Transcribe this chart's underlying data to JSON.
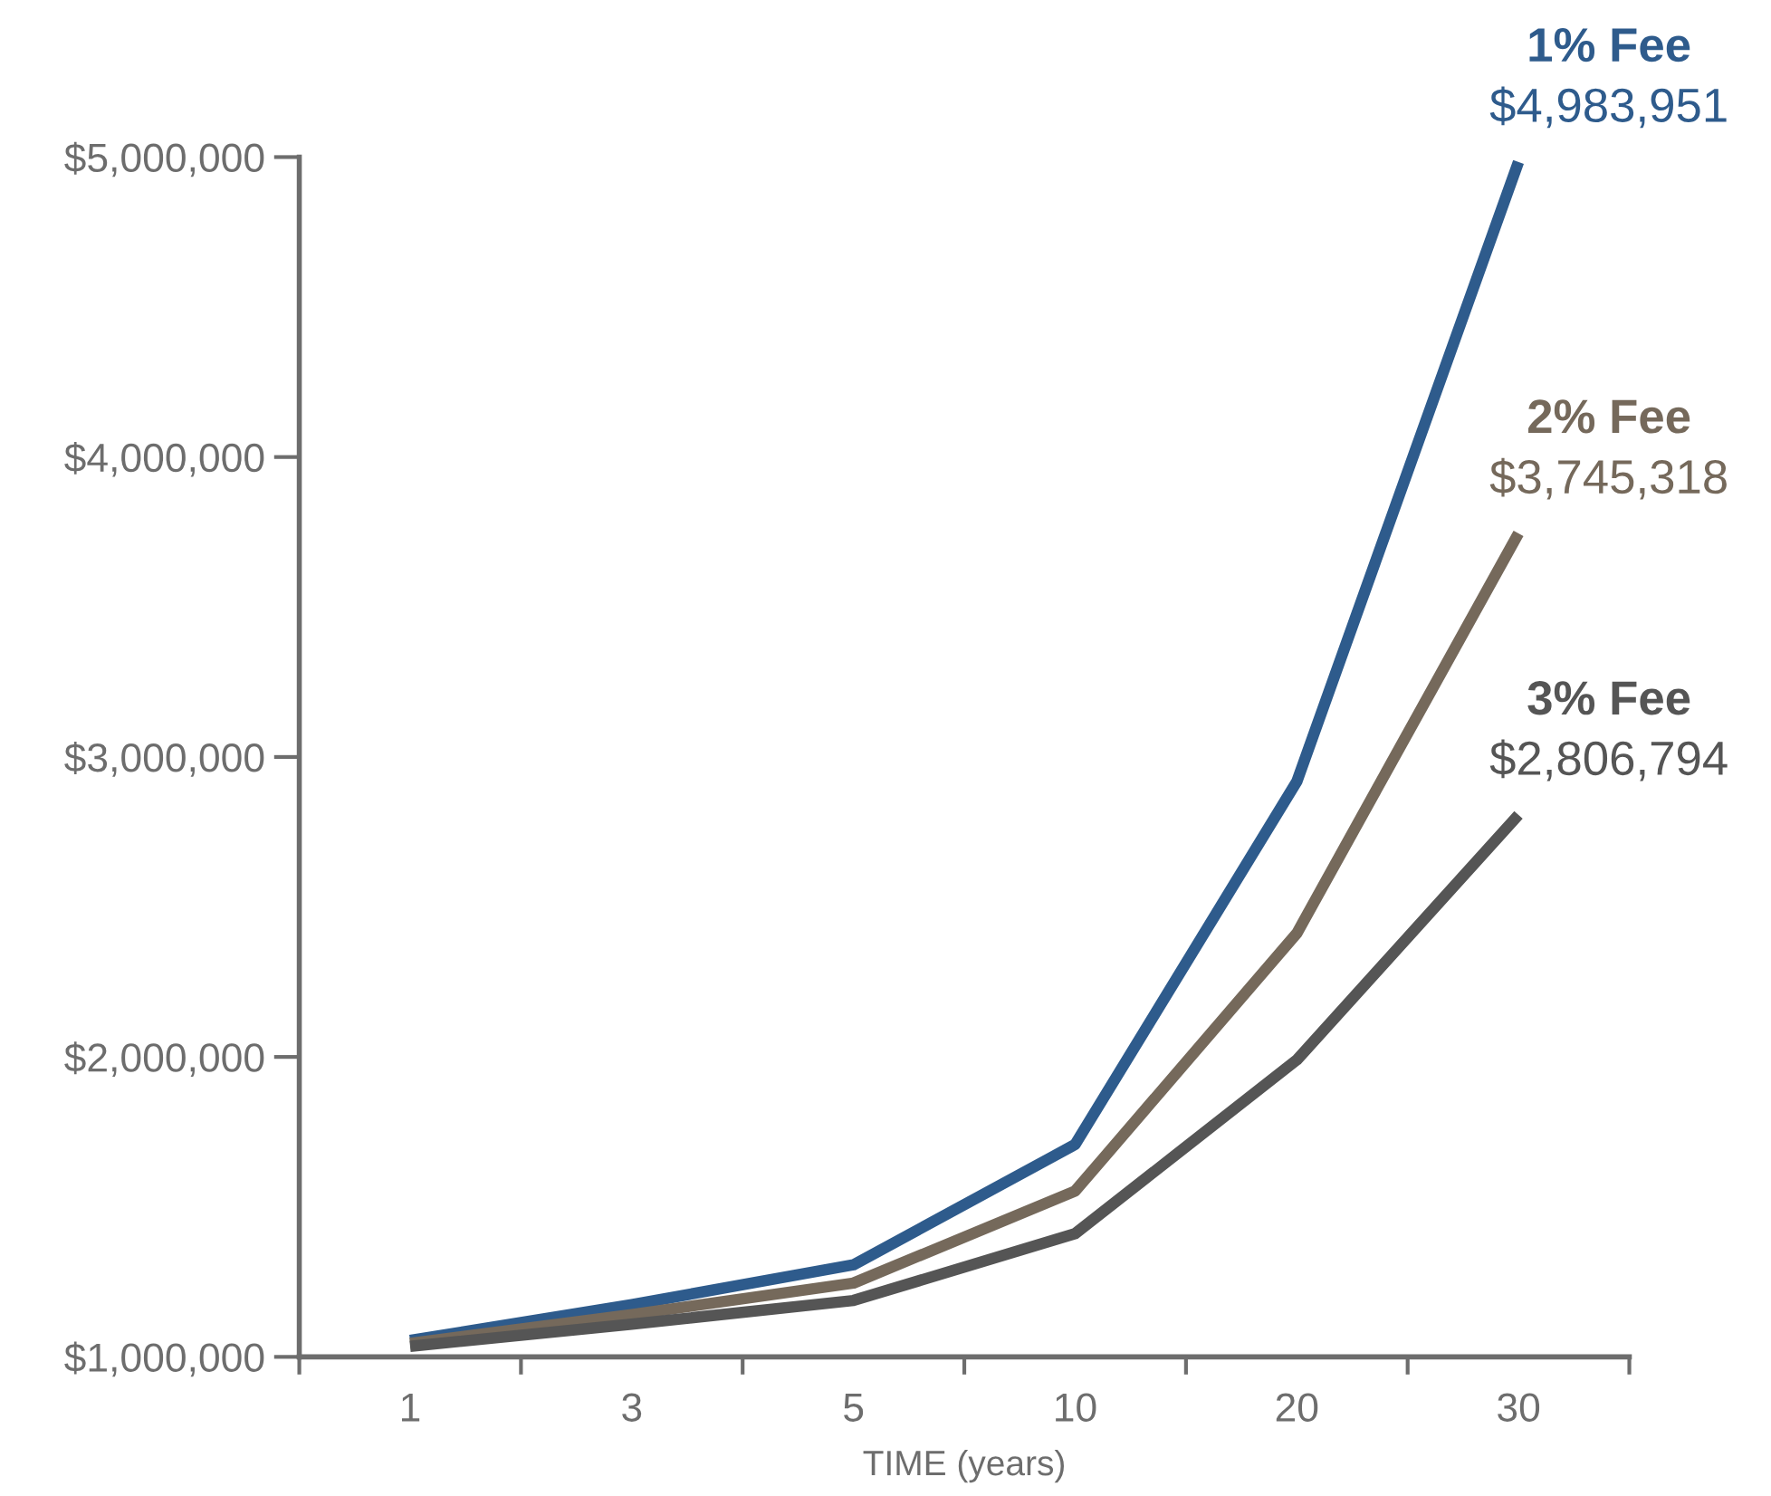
{
  "chart_data": {
    "type": "line",
    "xlabel": "TIME (years)",
    "categories": [
      "1",
      "3",
      "5",
      "10",
      "20",
      "30"
    ],
    "series": [
      {
        "name": "1% Fee",
        "color": "#2e5b8c",
        "values": [
          1055000,
          1174000,
          1307000,
          1708000,
          2918000,
          4983951
        ],
        "value_labels": [
          null,
          null,
          null,
          null,
          null,
          "$4,983,951"
        ]
      },
      {
        "name": "2% Fee",
        "color": "#75695b",
        "values": [
          1045000,
          1141000,
          1246000,
          1553000,
          2412000,
          3745318
        ],
        "value_labels": [
          null,
          null,
          null,
          null,
          null,
          "$3,745,318"
        ]
      },
      {
        "name": "3% Fee",
        "color": "#555555",
        "values": [
          1035000,
          1109000,
          1188000,
          1411000,
          1990000,
          2806794
        ],
        "value_labels": [
          null,
          null,
          null,
          null,
          null,
          "$2,806,794"
        ]
      }
    ],
    "ylim": [
      1000000,
      5000000
    ],
    "yticks": [
      {
        "value": 1000000,
        "label": "$1,000,000"
      },
      {
        "value": 2000000,
        "label": "$2,000,000"
      },
      {
        "value": 3000000,
        "label": "$3,000,000"
      },
      {
        "value": 4000000,
        "label": "$4,000,000"
      },
      {
        "value": 5000000,
        "label": "$5,000,000"
      }
    ],
    "grid": false,
    "legend": false,
    "marker": "none",
    "line_style": "solid"
  }
}
